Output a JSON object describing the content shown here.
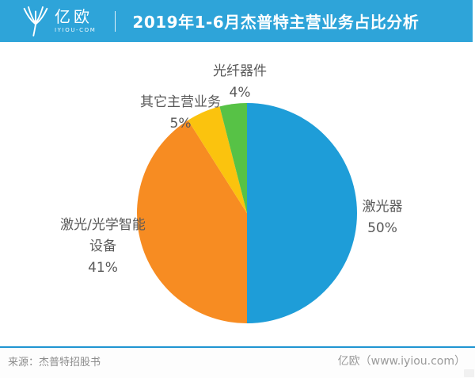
{
  "header": {
    "logo_text": "亿欧",
    "logo_subtext": "IYIOU-COM",
    "title": "2019年1-6月杰普特主营业务占比分析",
    "bg_color": "#2EA4D9"
  },
  "chart_data": {
    "type": "pie",
    "title": "2019年1-6月杰普特主营业务占比分析",
    "legend_position": "none",
    "start_angle_deg": 0,
    "direction": "clockwise",
    "unit": "%",
    "categories": [
      "激光器",
      "激光/光学智能设备",
      "其它主营业务",
      "光纤器件"
    ],
    "values": [
      50,
      41,
      5,
      4
    ],
    "slices": [
      {
        "id": "laser",
        "label": "激光器",
        "label_lines": [
          "激光器"
        ],
        "value": 50,
        "pct": "50%",
        "color": "#1E9DD8"
      },
      {
        "id": "equipment",
        "label": "激光/光学智能设备",
        "label_lines": [
          "激光/光学智能",
          "设备"
        ],
        "value": 41,
        "pct": "41%",
        "color": "#F78C22"
      },
      {
        "id": "other",
        "label": "其它主营业务",
        "label_lines": [
          "其它主营业务"
        ],
        "value": 5,
        "pct": "5%",
        "color": "#FBC30E"
      },
      {
        "id": "fiber",
        "label": "光纤器件",
        "label_lines": [
          "光纤器件"
        ],
        "value": 4,
        "pct": "4%",
        "color": "#57C246"
      }
    ]
  },
  "footer": {
    "source": "来源：杰普特招股书",
    "brand": "亿欧（www.iyiou.com）",
    "divider_color": "#2095D2"
  }
}
